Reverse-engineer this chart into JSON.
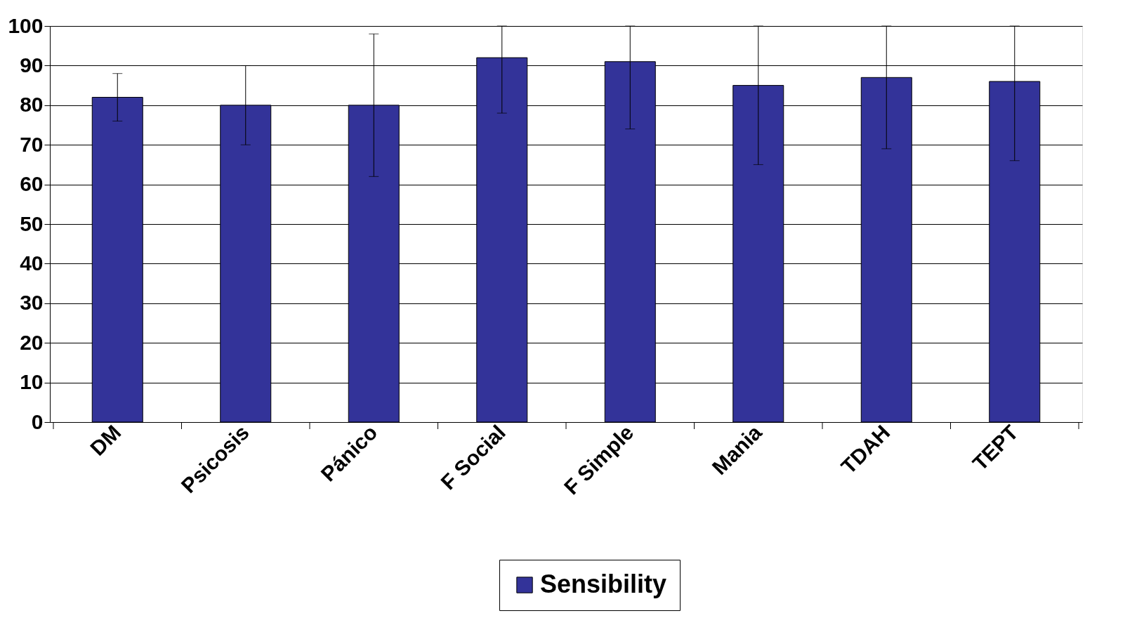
{
  "chart_data": {
    "type": "bar",
    "categories": [
      "DM",
      "Psicosis",
      "Pánico",
      "F Social",
      "F Simple",
      "Mania",
      "TDAH",
      "TEPT"
    ],
    "series": [
      {
        "name": "Sensibility",
        "color": "#333399",
        "values": [
          82,
          80,
          80,
          92,
          91,
          85,
          87,
          86
        ],
        "errors": [
          [
            76,
            88
          ],
          [
            70,
            90
          ],
          [
            62,
            98
          ],
          [
            78,
            100
          ],
          [
            74,
            100
          ],
          [
            65,
            100
          ],
          [
            69,
            100
          ],
          [
            66,
            100
          ]
        ]
      }
    ],
    "ylim": [
      0,
      100
    ],
    "yticks": [
      0,
      10,
      20,
      30,
      40,
      50,
      60,
      70,
      80,
      90,
      100
    ],
    "grid": "y",
    "legend": "bottom"
  }
}
